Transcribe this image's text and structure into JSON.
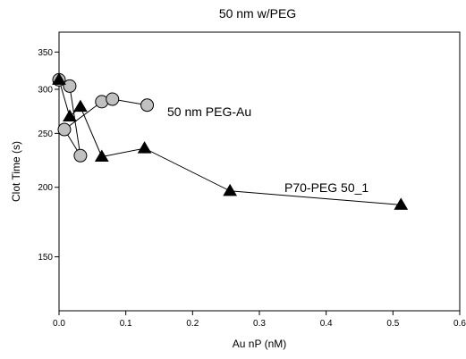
{
  "chart_data": {
    "type": "scatter",
    "title": "50 nm w/PEG",
    "xlabel": "Au nP (nM)",
    "ylabel": "Clot Time (s)",
    "xlim": [
      0,
      0.6
    ],
    "ylim": [
      120,
      380
    ],
    "y_scale": "log",
    "x_ticks": [
      0.0,
      0.1,
      0.2,
      0.3,
      0.4,
      0.5,
      0.6
    ],
    "x_tick_labels": [
      "0.0",
      "0.1",
      "0.2",
      "0.3",
      "0.4",
      "0.5",
      "0.6"
    ],
    "y_ticks": [
      150,
      200,
      250,
      300,
      350
    ],
    "y_tick_labels": [
      "150",
      "200",
      "250",
      "300",
      "350"
    ],
    "grid": false,
    "series": [
      {
        "name": "50 nm PEG-Au",
        "marker": "circle",
        "color": "#c0c0c0",
        "x": [
          0.0,
          0.016,
          0.032,
          0.008,
          0.064,
          0.08,
          0.132
        ],
        "y": [
          312,
          304,
          228,
          254,
          285,
          288,
          281
        ]
      },
      {
        "name": "P70-PEG 50_1",
        "marker": "triangle",
        "color": "#000000",
        "x": [
          0.0,
          0.016,
          0.032,
          0.064,
          0.128,
          0.256,
          0.512
        ],
        "y": [
          312,
          268,
          279,
          227,
          235,
          197,
          186
        ]
      }
    ]
  }
}
